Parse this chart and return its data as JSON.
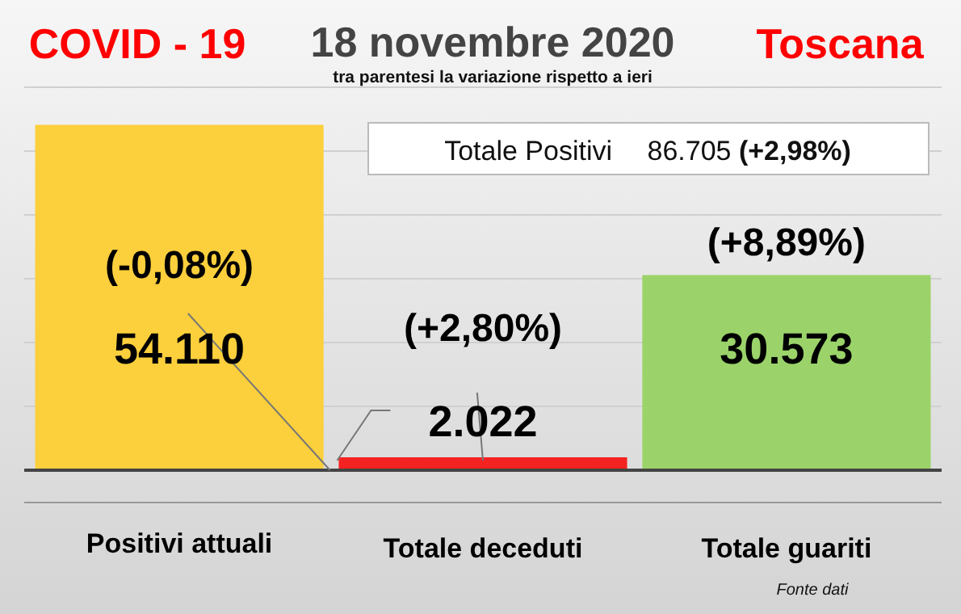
{
  "chart_data": {
    "type": "bar",
    "title": "18 novembre 2020",
    "subtitle": "tra parentesi la variazione rispetto a ieri",
    "annotations": [
      "COVID - 19",
      "Toscana",
      "Totale Positivi 86.705 (+2,98%)",
      "Fonte dati",
      "(-0,08%)",
      "(+2,80%)",
      "(+8,89%)"
    ],
    "categories": [
      "Positivi attuali",
      "Totale deceduti",
      "Totale guariti"
    ],
    "values": [
      54110,
      2022,
      30573
    ],
    "colors": [
      "#fccf3c",
      "#f52222",
      "#9bd36a"
    ],
    "value_labels": [
      "54.110",
      "2.022",
      "30.573"
    ],
    "ylim": [
      0,
      60000
    ],
    "yticks": [
      {
        "value": 10000,
        "label": null
      },
      {
        "value": 20000,
        "label": null
      },
      {
        "value": 30000,
        "label": null
      },
      {
        "value": 40000,
        "label": null
      },
      {
        "value": 50000,
        "label": null
      },
      {
        "value": 60000,
        "label": null
      }
    ],
    "tick_labels": "x",
    "grid": "y"
  }
}
